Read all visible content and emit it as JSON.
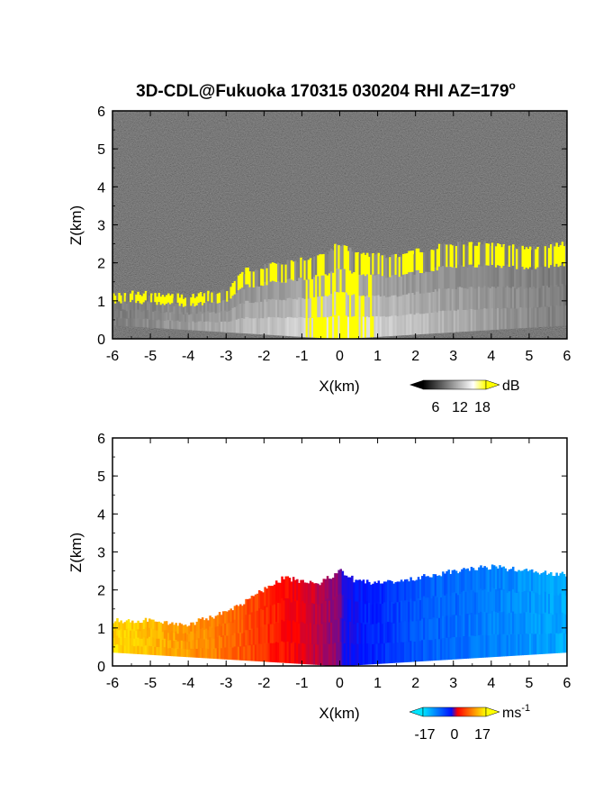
{
  "title": "3D-CDL@Fukuoka 170315 030204 RHI AZ=179",
  "title_degree_symbol": "o",
  "chart_data": [
    {
      "type": "heatmap",
      "quantity": "signal intensity",
      "xlabel": "X(km)",
      "ylabel": "Z(km)",
      "xlim": [
        -6,
        6
      ],
      "ylim": [
        0,
        6
      ],
      "x_ticks": [
        -6,
        -5,
        -4,
        -3,
        -2,
        -1,
        0,
        1,
        2,
        3,
        4,
        5,
        6
      ],
      "y_ticks": [
        0,
        1,
        2,
        3,
        4,
        5,
        6
      ],
      "colorbar": {
        "unit": "dB",
        "ticks": [
          6,
          12,
          18
        ],
        "colors": [
          "#000000",
          "#ffffff",
          "#ffff00"
        ],
        "range": [
          0,
          20
        ]
      },
      "background_color": "#2b2b2b",
      "echo_top_envelope": [
        {
          "x": -6.0,
          "z": 1.2
        },
        {
          "x": -5.0,
          "z": 1.2
        },
        {
          "x": -4.0,
          "z": 1.1
        },
        {
          "x": -3.0,
          "z": 1.3
        },
        {
          "x": -2.5,
          "z": 1.8
        },
        {
          "x": -1.5,
          "z": 2.0
        },
        {
          "x": -0.5,
          "z": 2.2
        },
        {
          "x": 0.0,
          "z": 2.5
        },
        {
          "x": 0.5,
          "z": 2.2
        },
        {
          "x": 1.5,
          "z": 2.2
        },
        {
          "x": 3.0,
          "z": 2.5
        },
        {
          "x": 4.0,
          "z": 2.5
        },
        {
          "x": 5.0,
          "z": 2.4
        },
        {
          "x": 6.0,
          "z": 2.5
        }
      ]
    },
    {
      "type": "heatmap",
      "quantity": "radial velocity",
      "xlabel": "X(km)",
      "ylabel": "Z(km)",
      "xlim": [
        -6,
        6
      ],
      "ylim": [
        0,
        6
      ],
      "x_ticks": [
        -6,
        -5,
        -4,
        -3,
        -2,
        -1,
        0,
        1,
        2,
        3,
        4,
        5,
        6
      ],
      "y_ticks": [
        0,
        1,
        2,
        3,
        4,
        5,
        6
      ],
      "colorbar": {
        "unit": "ms",
        "unit_exponent": "-1",
        "ticks": [
          -17,
          0,
          17
        ],
        "colors": [
          "#00e5ff",
          "#0010ff",
          "#ff0000",
          "#ffff00"
        ],
        "range": [
          -22,
          22
        ]
      },
      "echo_top_envelope": [
        {
          "x": -6.0,
          "z": 1.2
        },
        {
          "x": -5.0,
          "z": 1.2
        },
        {
          "x": -4.0,
          "z": 1.1
        },
        {
          "x": -3.0,
          "z": 1.4
        },
        {
          "x": -2.0,
          "z": 2.0
        },
        {
          "x": -1.5,
          "z": 2.3
        },
        {
          "x": -0.5,
          "z": 2.2
        },
        {
          "x": 0.0,
          "z": 2.5
        },
        {
          "x": 0.5,
          "z": 2.2
        },
        {
          "x": 1.5,
          "z": 2.2
        },
        {
          "x": 3.0,
          "z": 2.5
        },
        {
          "x": 4.0,
          "z": 2.6
        },
        {
          "x": 5.0,
          "z": 2.5
        },
        {
          "x": 6.0,
          "z": 2.4
        }
      ],
      "velocity_profile": [
        {
          "x": -6.0,
          "v": 20
        },
        {
          "x": -3.0,
          "v": 14
        },
        {
          "x": -1.0,
          "v": 6
        },
        {
          "x": 0.0,
          "v": 0
        },
        {
          "x": 0.1,
          "v": -6
        },
        {
          "x": 2.0,
          "v": -12
        },
        {
          "x": 6.0,
          "v": -18
        }
      ]
    }
  ]
}
